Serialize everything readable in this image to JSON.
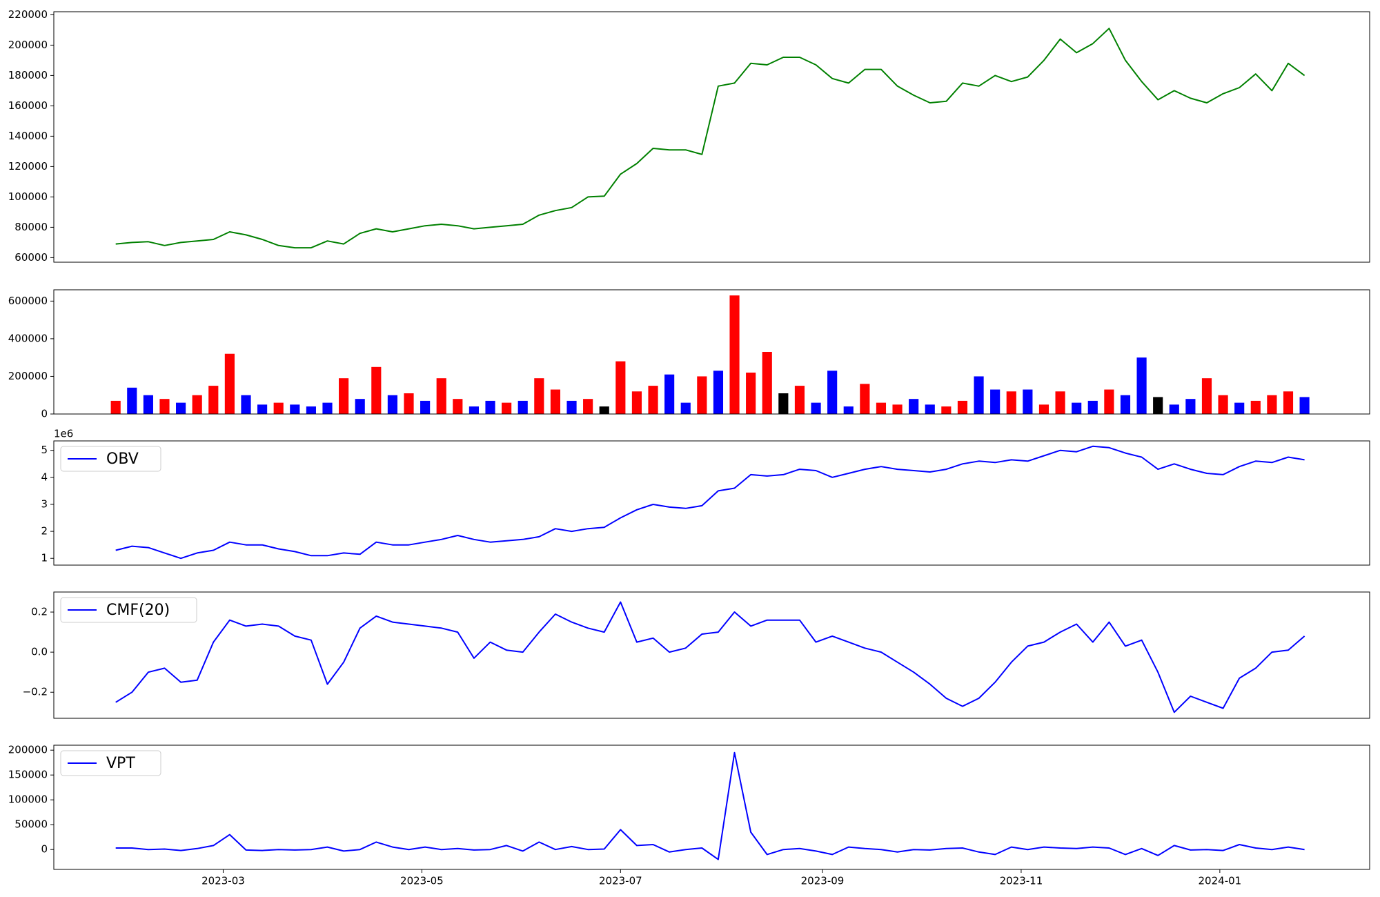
{
  "chart_data": [
    {
      "type": "line",
      "color": "green",
      "x": [
        26,
        31,
        36,
        41,
        46,
        51,
        56,
        61,
        66,
        71,
        76,
        81,
        86,
        91,
        96,
        101,
        106,
        111,
        116,
        121,
        126,
        131,
        136,
        141,
        146,
        151,
        156,
        161,
        166,
        171,
        176,
        181,
        186,
        191,
        196,
        201,
        206,
        211,
        216,
        221,
        226,
        231,
        236,
        241,
        246,
        251,
        256,
        261,
        266,
        271,
        276,
        281,
        286,
        291,
        296,
        301,
        306,
        311,
        316,
        321,
        326,
        331,
        336,
        341,
        346,
        351,
        356,
        361,
        366,
        371,
        376,
        381,
        386,
        391
      ],
      "values": [
        69000,
        70000,
        70500,
        68000,
        70000,
        71000,
        72000,
        77000,
        75000,
        72000,
        68000,
        66500,
        66500,
        71000,
        69000,
        76000,
        79000,
        77000,
        79000,
        81000,
        82000,
        81000,
        79000,
        80000,
        81000,
        82000,
        88000,
        91000,
        93000,
        100000,
        100500,
        115000,
        122000,
        132000,
        131000,
        131000,
        128000,
        173000,
        175000,
        188000,
        187000,
        192000,
        192000,
        187000,
        178000,
        175000,
        184000,
        184000,
        173000,
        167000,
        162000,
        163000,
        175000,
        173000,
        180000,
        176000,
        179000,
        190000,
        204000,
        195000,
        201000,
        211000,
        190000,
        176000,
        164000,
        170000,
        165000,
        162000,
        168000,
        172000,
        181000,
        170000,
        188000,
        180000
      ],
      "xlim": [
        7,
        411
      ],
      "ylim": [
        57000,
        222000
      ],
      "yticks": [
        60000,
        80000,
        100000,
        120000,
        140000,
        160000,
        180000,
        200000,
        220000
      ]
    },
    {
      "type": "bar",
      "x": [
        26,
        31,
        36,
        41,
        46,
        51,
        56,
        61,
        66,
        71,
        76,
        81,
        86,
        91,
        96,
        101,
        106,
        111,
        116,
        121,
        126,
        131,
        136,
        141,
        146,
        151,
        156,
        161,
        166,
        171,
        176,
        181,
        186,
        191,
        196,
        201,
        206,
        211,
        216,
        221,
        226,
        231,
        236,
        241,
        246,
        251,
        256,
        261,
        266,
        271,
        276,
        281,
        286,
        291,
        296,
        301,
        306,
        311,
        316,
        321,
        326,
        331,
        336,
        341,
        346,
        351,
        356,
        361,
        366,
        371,
        376,
        381,
        386,
        391
      ],
      "values": [
        70000,
        140000,
        100000,
        80000,
        60000,
        100000,
        150000,
        320000,
        100000,
        50000,
        60000,
        50000,
        40000,
        60000,
        190000,
        80000,
        250000,
        100000,
        110000,
        70000,
        190000,
        80000,
        40000,
        70000,
        60000,
        70000,
        190000,
        130000,
        70000,
        80000,
        40000,
        280000,
        120000,
        150000,
        210000,
        60000,
        200000,
        230000,
        630000,
        220000,
        330000,
        110000,
        150000,
        60000,
        230000,
        40000,
        160000,
        60000,
        50000,
        80000,
        50000,
        40000,
        70000,
        200000,
        130000,
        120000,
        130000,
        50000,
        120000,
        60000,
        70000,
        130000,
        100000,
        300000,
        90000,
        50000,
        80000,
        190000,
        100000,
        60000,
        70000,
        100000,
        120000,
        90000
      ],
      "colors": [
        "red",
        "blue",
        "blue",
        "red",
        "blue",
        "red",
        "red",
        "red",
        "blue",
        "blue",
        "red",
        "blue",
        "blue",
        "blue",
        "red",
        "blue",
        "red",
        "blue",
        "red",
        "blue",
        "red",
        "red",
        "blue",
        "blue",
        "red",
        "blue",
        "red",
        "red",
        "blue",
        "red",
        "black",
        "red",
        "red",
        "red",
        "blue",
        "blue",
        "red",
        "blue",
        "red",
        "red",
        "red",
        "black",
        "red",
        "blue",
        "blue",
        "blue",
        "red",
        "red",
        "red",
        "blue",
        "blue",
        "red",
        "red",
        "blue",
        "blue",
        "red",
        "blue",
        "red",
        "red",
        "blue",
        "blue",
        "red",
        "blue",
        "blue",
        "black",
        "blue",
        "blue",
        "red",
        "red",
        "blue",
        "red",
        "red",
        "red",
        "blue"
      ],
      "xlim": [
        7,
        411
      ],
      "ylim": [
        0,
        660000
      ],
      "yticks": [
        0,
        200000,
        400000,
        600000
      ]
    },
    {
      "type": "line",
      "offset_label": "1e6",
      "legend": "upper left",
      "x": [
        26,
        31,
        36,
        41,
        46,
        51,
        56,
        61,
        66,
        71,
        76,
        81,
        86,
        91,
        96,
        101,
        106,
        111,
        116,
        121,
        126,
        131,
        136,
        141,
        146,
        151,
        156,
        161,
        166,
        171,
        176,
        181,
        186,
        191,
        196,
        201,
        206,
        211,
        216,
        221,
        226,
        231,
        236,
        241,
        246,
        251,
        256,
        261,
        266,
        271,
        276,
        281,
        286,
        291,
        296,
        301,
        306,
        311,
        316,
        321,
        326,
        331,
        336,
        341,
        346,
        351,
        356,
        361,
        366,
        371,
        376,
        381,
        386,
        391
      ],
      "series": [
        {
          "name": "OBV",
          "color": "blue",
          "values": [
            1.3,
            1.45,
            1.4,
            1.2,
            1.0,
            1.2,
            1.3,
            1.6,
            1.5,
            1.5,
            1.35,
            1.25,
            1.1,
            1.1,
            1.2,
            1.15,
            1.6,
            1.5,
            1.5,
            1.6,
            1.7,
            1.85,
            1.7,
            1.6,
            1.65,
            1.7,
            1.8,
            2.1,
            2.0,
            2.1,
            2.15,
            2.5,
            2.8,
            3.0,
            2.9,
            2.85,
            2.95,
            3.5,
            3.6,
            4.1,
            4.05,
            4.1,
            4.3,
            4.25,
            4.0,
            4.15,
            4.3,
            4.4,
            4.3,
            4.25,
            4.2,
            4.3,
            4.5,
            4.6,
            4.55,
            4.65,
            4.6,
            4.8,
            5.0,
            4.95,
            5.15,
            5.1,
            4.9,
            4.75,
            4.3,
            4.5,
            4.3,
            4.15,
            4.1,
            4.4,
            4.6,
            4.55,
            4.75,
            4.65
          ]
        }
      ],
      "xlim": [
        7,
        411
      ],
      "ylim": [
        0.75,
        5.35
      ],
      "yticks": [
        1,
        2,
        3,
        4,
        5
      ]
    },
    {
      "type": "line",
      "legend": "upper left",
      "x": [
        26,
        31,
        36,
        41,
        46,
        51,
        56,
        61,
        66,
        71,
        76,
        81,
        86,
        91,
        96,
        101,
        106,
        111,
        116,
        121,
        126,
        131,
        136,
        141,
        146,
        151,
        156,
        161,
        166,
        171,
        176,
        181,
        186,
        191,
        196,
        201,
        206,
        211,
        216,
        221,
        226,
        231,
        236,
        241,
        246,
        251,
        256,
        261,
        266,
        271,
        276,
        281,
        286,
        291,
        296,
        301,
        306,
        311,
        316,
        321,
        326,
        331,
        336,
        341,
        346,
        351,
        356,
        361,
        366,
        371,
        376,
        381,
        386,
        391
      ],
      "series": [
        {
          "name": "CMF(20)",
          "color": "blue",
          "values": [
            -0.25,
            -0.2,
            -0.1,
            -0.08,
            -0.15,
            -0.14,
            0.05,
            0.16,
            0.13,
            0.14,
            0.13,
            0.08,
            0.06,
            -0.16,
            -0.05,
            0.12,
            0.18,
            0.15,
            0.14,
            0.13,
            0.12,
            0.1,
            -0.03,
            0.05,
            0.01,
            0.0,
            0.1,
            0.19,
            0.15,
            0.12,
            0.1,
            0.25,
            0.05,
            0.07,
            0.0,
            0.02,
            0.09,
            0.1,
            0.2,
            0.13,
            0.16,
            0.16,
            0.16,
            0.05,
            0.08,
            0.05,
            0.02,
            0.0,
            -0.05,
            -0.1,
            -0.16,
            -0.23,
            -0.27,
            -0.23,
            -0.15,
            -0.05,
            0.03,
            0.05,
            0.1,
            0.14,
            0.05,
            0.15,
            0.03,
            0.06,
            -0.1,
            -0.3,
            -0.22,
            -0.25,
            -0.28,
            -0.13,
            -0.08,
            0.0,
            0.01,
            0.08
          ]
        }
      ],
      "xlim": [
        7,
        411
      ],
      "ylim": [
        -0.33,
        0.3
      ],
      "yticks": [
        {
          "value": -0.2,
          "label": "−0.2"
        },
        {
          "value": 0,
          "label": "0.0"
        },
        0.2
      ]
    },
    {
      "type": "line",
      "legend": "upper left",
      "x": [
        26,
        31,
        36,
        41,
        46,
        51,
        56,
        61,
        66,
        71,
        76,
        81,
        86,
        91,
        96,
        101,
        106,
        111,
        116,
        121,
        126,
        131,
        136,
        141,
        146,
        151,
        156,
        161,
        166,
        171,
        176,
        181,
        186,
        191,
        196,
        201,
        206,
        211,
        216,
        221,
        226,
        231,
        236,
        241,
        246,
        251,
        256,
        261,
        266,
        271,
        276,
        281,
        286,
        291,
        296,
        301,
        306,
        311,
        316,
        321,
        326,
        331,
        336,
        341,
        346,
        351,
        356,
        361,
        366,
        371,
        376,
        381,
        386,
        391
      ],
      "series": [
        {
          "name": "VPT",
          "color": "blue",
          "values": [
            3000,
            3000,
            0,
            1000,
            -2000,
            2000,
            8000,
            30000,
            -1000,
            -2000,
            0,
            -1000,
            0,
            5000,
            -3000,
            0,
            15000,
            5000,
            0,
            5000,
            0,
            2000,
            -1000,
            0,
            8000,
            -3000,
            15000,
            0,
            6000,
            0,
            1000,
            40000,
            8000,
            10000,
            -5000,
            0,
            3000,
            -20000,
            195000,
            35000,
            -10000,
            0,
            2000,
            -3000,
            -10000,
            5000,
            2000,
            0,
            -5000,
            0,
            -1000,
            2000,
            3000,
            -5000,
            -10000,
            5000,
            0,
            5000,
            3000,
            2000,
            5000,
            3000,
            -10000,
            2000,
            -12000,
            8000,
            -1000,
            0,
            -2000,
            10000,
            3000,
            0,
            5000,
            0
          ]
        }
      ],
      "xlim": [
        7,
        411
      ],
      "ylim": [
        -40000,
        210000
      ],
      "yticks": [
        0,
        50000,
        100000,
        150000,
        200000
      ],
      "xticks": [
        {
          "value": 59,
          "label": "2023-03"
        },
        {
          "value": 120,
          "label": "2023-05"
        },
        {
          "value": 181,
          "label": "2023-07"
        },
        {
          "value": 243,
          "label": "2023-09"
        },
        {
          "value": 304,
          "label": "2023-11"
        },
        {
          "value": 365,
          "label": "2024-01"
        }
      ]
    }
  ]
}
